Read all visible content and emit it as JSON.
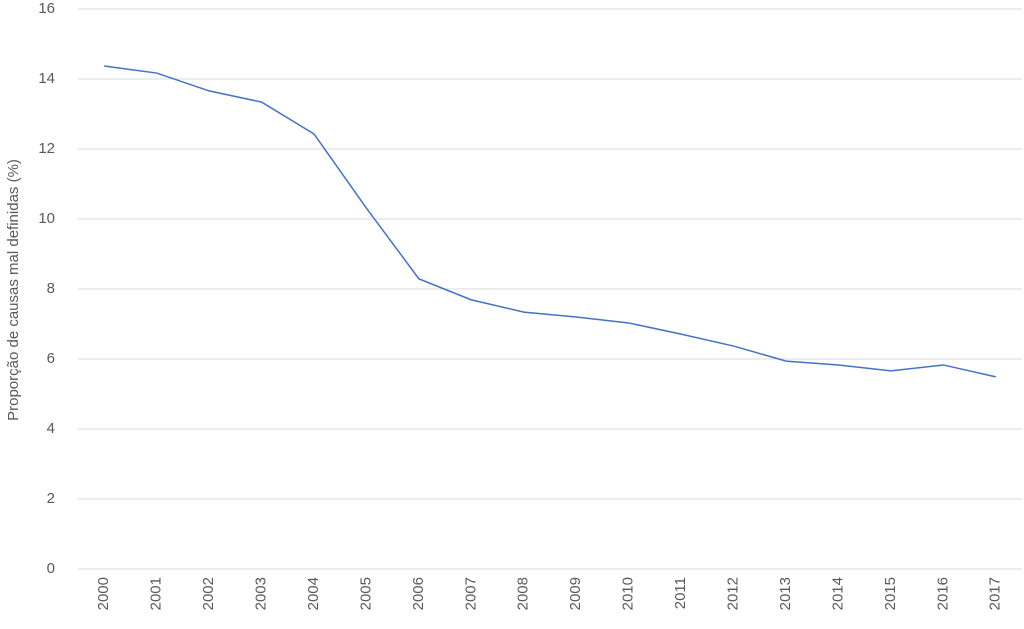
{
  "chart_data": {
    "type": "line",
    "y_label": "Proporção de causas mal definidas (%)",
    "categories": [
      "2000",
      "2001",
      "2002",
      "2003",
      "2004",
      "2005",
      "2006",
      "2007",
      "2008",
      "2009",
      "2010",
      "2011",
      "2012",
      "2013",
      "2014",
      "2015",
      "2016",
      "2017"
    ],
    "series": [
      {
        "color": "#4472c4",
        "values": [
          14.37,
          14.17,
          13.66,
          13.34,
          12.43,
          10.31,
          8.29,
          7.69,
          7.34,
          7.2,
          7.03,
          6.71,
          6.37,
          5.94,
          5.83,
          5.66,
          5.83,
          5.49
        ]
      }
    ],
    "ylim": [
      0,
      16
    ],
    "yticks": [
      0,
      2,
      4,
      6,
      8,
      10,
      12,
      14,
      16
    ],
    "grid": true
  }
}
